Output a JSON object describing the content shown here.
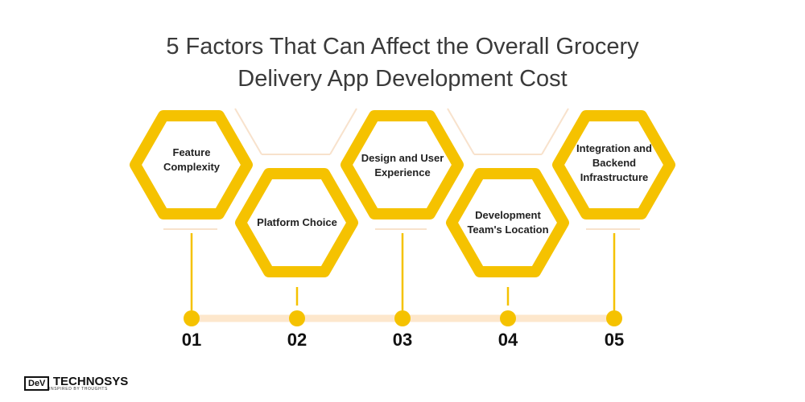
{
  "title": {
    "line1": "5 Factors That Can Affect the Overall Grocery",
    "line2": "Delivery App Development Cost"
  },
  "factors": [
    {
      "label": "Feature Complexity",
      "number": "01"
    },
    {
      "label": "Platform Choice",
      "number": "02"
    },
    {
      "label": "Design and User Experience",
      "number": "03"
    },
    {
      "label": "Development Team's Location",
      "number": "04"
    },
    {
      "label": "Integration and Backend Infrastructure",
      "number": "05"
    }
  ],
  "logo": {
    "mark": "DeV",
    "brand": "TECHNOSYS",
    "tagline": "INSPIRED BY THOUGHTS"
  },
  "colors": {
    "hex_stroke": "#f5c200",
    "timeline_line": "#fde7cc",
    "outline": "#f8e2cc",
    "number": "#111111"
  }
}
